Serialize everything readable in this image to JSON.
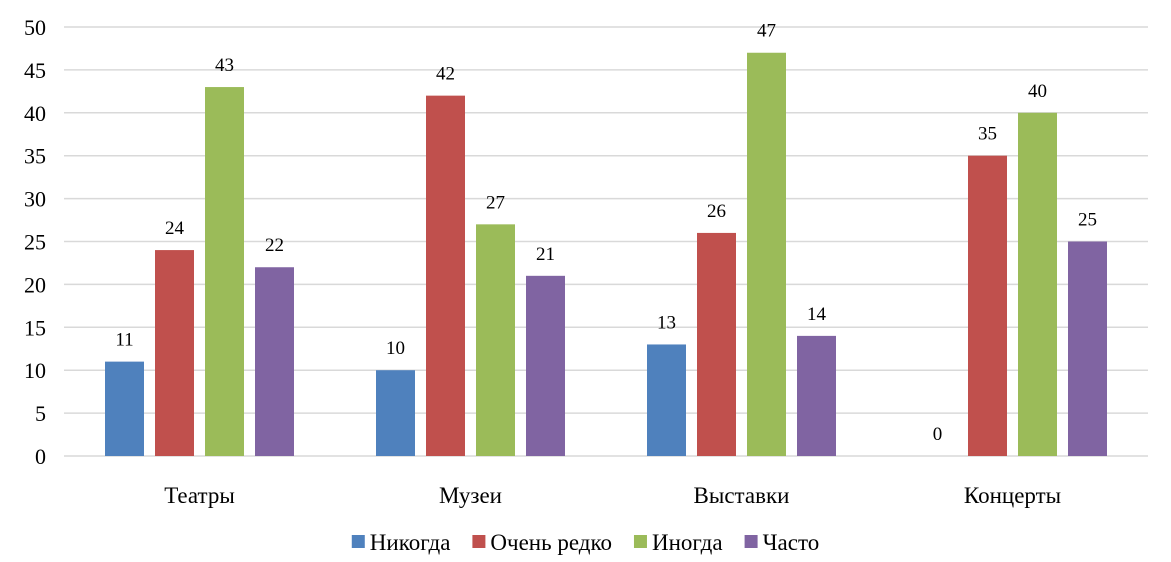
{
  "chart_data": {
    "type": "bar",
    "categories": [
      "Театры",
      "Музеи",
      "Выставки",
      "Концерты"
    ],
    "series": [
      {
        "name": "Никогда",
        "color": "#4f81bd",
        "values": [
          11,
          10,
          13,
          0
        ]
      },
      {
        "name": "Очень редко",
        "color": "#c0504d",
        "values": [
          24,
          42,
          26,
          35
        ]
      },
      {
        "name": "Иногда",
        "color": "#9bbb59",
        "values": [
          43,
          27,
          47,
          40
        ]
      },
      {
        "name": "Часто",
        "color": "#8064a2",
        "values": [
          22,
          21,
          14,
          25
        ]
      }
    ],
    "yticks": [
      0,
      5,
      10,
      15,
      20,
      25,
      30,
      35,
      40,
      45,
      50
    ],
    "ylim": [
      0,
      50
    ],
    "grid": true,
    "legend_position": "bottom",
    "data_labels": true
  }
}
